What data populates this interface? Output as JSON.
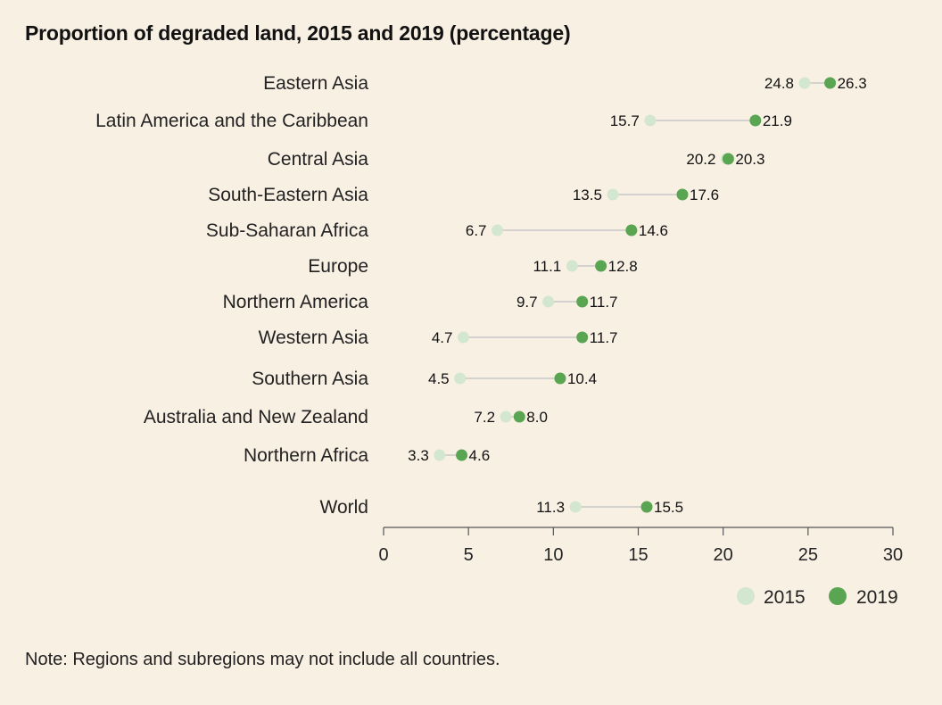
{
  "chart_data": {
    "type": "dumbbell",
    "title": "Proportion of degraded land, 2015 and 2019 (percentage)",
    "categories": [
      "Eastern Asia",
      "Latin America and the Caribbean",
      "Central Asia",
      "South-Eastern Asia",
      "Sub-Saharan Africa",
      "Europe",
      "Northern America",
      "Western Asia",
      "Southern Asia",
      "Australia and New Zealand",
      "Northern Africa",
      "World"
    ],
    "series": [
      {
        "name": "2015",
        "color": "#d3e6cf",
        "values": [
          24.8,
          15.7,
          20.2,
          13.5,
          6.7,
          11.1,
          9.7,
          4.7,
          4.5,
          7.2,
          3.3,
          11.3
        ]
      },
      {
        "name": "2019",
        "color": "#5aa552",
        "values": [
          26.3,
          21.9,
          20.3,
          17.6,
          14.6,
          12.8,
          11.7,
          11.7,
          10.4,
          8.0,
          4.6,
          15.5
        ]
      }
    ],
    "value_labels_2015": [
      "24.8",
      "15.7",
      "20.2",
      "13.5",
      "6.7",
      "11.1",
      "9.7",
      "4.7",
      "4.5",
      "7.2",
      "3.3",
      "11.3"
    ],
    "value_labels_2019": [
      "26.3",
      "21.9",
      "20.3",
      "17.6",
      "14.6",
      "12.8",
      "11.7",
      "11.7",
      "10.4",
      "8.0",
      "4.6",
      "15.5"
    ],
    "xlim": [
      0,
      30
    ],
    "xticks": [
      0,
      5,
      10,
      15,
      20,
      25,
      30
    ],
    "grid": false,
    "legend_position": "bottom-right",
    "note": "Note: Regions and subregions may not include all countries."
  }
}
